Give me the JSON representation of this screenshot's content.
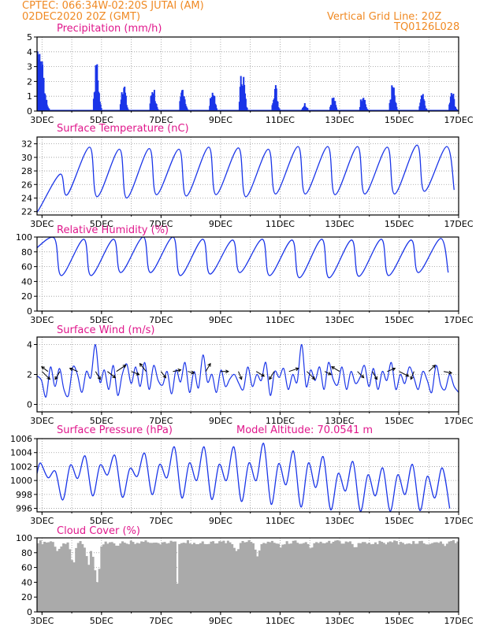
{
  "header": {
    "line1": "CPTEC:    066:34W-02:20S   JUTAI (AM)",
    "line2": "02DEC2020  20Z (GMT)",
    "right1": "Vertical Grid Line: 20Z",
    "right2": "TQ0126L028"
  },
  "date_ticks": [
    "3DEC",
    "5DEC",
    "7DEC",
    "9DEC",
    "11DEC",
    "13DEC",
    "15DEC",
    "17DEC"
  ],
  "colors": {
    "header": "#f08a24",
    "title": "#e0188c",
    "series": "#1a35e8",
    "cloud": "#aaaaaa",
    "frame": "#000000",
    "grid": "#999999"
  },
  "chart_data": [
    {
      "id": "precip",
      "type": "bar",
      "title": "Precipitation (mm/h)",
      "ylim": [
        0,
        5
      ],
      "yticks": [
        0,
        1,
        2,
        3,
        4,
        5
      ],
      "xlim_days": [
        2.833,
        17.0
      ],
      "bursts": [
        {
          "day": 2.95,
          "peak": 4.8
        },
        {
          "day": 4.85,
          "peak": 3.5
        },
        {
          "day": 5.75,
          "peak": 2.4
        },
        {
          "day": 6.75,
          "peak": 2.0
        },
        {
          "day": 7.75,
          "peak": 1.9
        },
        {
          "day": 8.75,
          "peak": 1.6
        },
        {
          "day": 9.75,
          "peak": 3.3
        },
        {
          "day": 10.85,
          "peak": 2.0
        },
        {
          "day": 11.85,
          "peak": 0.6
        },
        {
          "day": 12.8,
          "peak": 1.1
        },
        {
          "day": 13.8,
          "peak": 1.5
        },
        {
          "day": 14.8,
          "peak": 2.0
        },
        {
          "day": 15.8,
          "peak": 1.2
        },
        {
          "day": 16.8,
          "peak": 1.5
        }
      ]
    },
    {
      "id": "temp",
      "type": "line",
      "title": "Surface Temperature (nC)",
      "ylim": [
        21.5,
        33
      ],
      "yticks": [
        22,
        24,
        26,
        28,
        30,
        32
      ],
      "xlim_days": [
        2.833,
        17.0
      ],
      "start": 23.2,
      "min_values": [
        22.0,
        24.5,
        24.2,
        24.0,
        24.5,
        24.3,
        24.5,
        24.2,
        24.6,
        24.6,
        24.5,
        24.6,
        24.6,
        25.0,
        25.2
      ],
      "max_values": [
        27.5,
        31.5,
        31.2,
        31.3,
        31.2,
        31.5,
        31.4,
        31.2,
        31.6,
        31.6,
        31.6,
        31.5,
        31.8,
        31.6,
        31.0
      ]
    },
    {
      "id": "rh",
      "type": "line",
      "title": "Relative Humidity (%)",
      "ylim": [
        0,
        100
      ],
      "yticks": [
        0,
        20,
        40,
        60,
        80,
        100
      ],
      "xlim_days": [
        2.833,
        17.0
      ],
      "start": 99,
      "min_values": [
        80,
        48,
        48,
        52,
        52,
        48,
        50,
        52,
        48,
        45,
        45,
        47,
        48,
        52,
        52,
        48
      ],
      "max_values": [
        99,
        97,
        97,
        100,
        100,
        97,
        96,
        97,
        96,
        97,
        96,
        97,
        96,
        98,
        99,
        70
      ]
    },
    {
      "id": "wind",
      "type": "line",
      "title": "Surface Wind (m/s)",
      "ylim": [
        -0.5,
        4.5
      ],
      "yticks": [
        0,
        2,
        4
      ],
      "xlim_days": [
        2.833,
        17.0
      ],
      "values": [
        1.9,
        1.6,
        0.5,
        2.5,
        1.2,
        2.4,
        1.0,
        0.6,
        2.5,
        2.0,
        0.8,
        2.2,
        1.8,
        4.0,
        1.5,
        2.3,
        1.0,
        2.6,
        0.6,
        2.0,
        2.7,
        1.4,
        2.5,
        1.2,
        2.8,
        1.0,
        2.6,
        1.6,
        1.3,
        2.2,
        0.7,
        2.3,
        1.5,
        2.8,
        0.8,
        2.2,
        1.1,
        3.3,
        1.5,
        2.0,
        0.8,
        2.3,
        1.2,
        1.7,
        2.0,
        1.4,
        1.0,
        2.5,
        1.2,
        2.0,
        1.6,
        2.8,
        0.6,
        2.2,
        1.8,
        2.4,
        1.0,
        2.0,
        1.5,
        4.0,
        1.2,
        2.3,
        1.6,
        2.5,
        1.0,
        2.8,
        1.7,
        1.3,
        2.5,
        1.0,
        2.2,
        1.4,
        1.8,
        2.6,
        1.2,
        2.4,
        1.0,
        2.2,
        1.6,
        2.8,
        1.0,
        2.0,
        1.4,
        2.5,
        1.8,
        1.0,
        2.2,
        1.6,
        0.8,
        2.6,
        1.3,
        1.0,
        2.0,
        1.2,
        0.8
      ],
      "arrows": [
        {
          "day": 3.0,
          "dx": 10,
          "dy": 10
        },
        {
          "day": 3.2,
          "dx": -8,
          "dy": -6
        },
        {
          "day": 3.6,
          "dx": -6,
          "dy": 10
        },
        {
          "day": 4.2,
          "dx": -10,
          "dy": -4
        },
        {
          "day": 4.8,
          "dx": 6,
          "dy": 10
        },
        {
          "day": 5.2,
          "dx": 10,
          "dy": 8
        },
        {
          "day": 5.5,
          "dx": 12,
          "dy": -8
        },
        {
          "day": 6.0,
          "dx": 10,
          "dy": 4
        },
        {
          "day": 6.5,
          "dx": -8,
          "dy": -10
        },
        {
          "day": 7.0,
          "dx": 6,
          "dy": 8
        },
        {
          "day": 7.4,
          "dx": 10,
          "dy": -2
        },
        {
          "day": 7.9,
          "dx": 8,
          "dy": 2
        },
        {
          "day": 8.5,
          "dx": 6,
          "dy": -10
        },
        {
          "day": 9.0,
          "dx": 10,
          "dy": 0
        },
        {
          "day": 9.6,
          "dx": 4,
          "dy": 10
        },
        {
          "day": 10.2,
          "dx": 10,
          "dy": 6
        },
        {
          "day": 10.8,
          "dx": -6,
          "dy": 10
        },
        {
          "day": 11.3,
          "dx": 12,
          "dy": -4
        },
        {
          "day": 11.9,
          "dx": 10,
          "dy": 10
        },
        {
          "day": 12.5,
          "dx": 8,
          "dy": 4
        },
        {
          "day": 13.0,
          "dx": -10,
          "dy": -6
        },
        {
          "day": 13.6,
          "dx": 8,
          "dy": 8
        },
        {
          "day": 14.1,
          "dx": 6,
          "dy": 10
        },
        {
          "day": 14.6,
          "dx": 10,
          "dy": -4
        },
        {
          "day": 15.0,
          "dx": 12,
          "dy": 6
        },
        {
          "day": 15.5,
          "dx": -4,
          "dy": 10
        },
        {
          "day": 16.0,
          "dx": 8,
          "dy": -8
        },
        {
          "day": 16.5,
          "dx": 10,
          "dy": 2
        }
      ]
    },
    {
      "id": "pres",
      "type": "line",
      "title": "Surface Pressure (hPa)",
      "annotation": "Model Altitude: 70.0541  m",
      "ylim": [
        995.5,
        1006
      ],
      "yticks": [
        996,
        998,
        1000,
        1002,
        1004,
        1006
      ],
      "xlim_days": [
        2.833,
        17.0
      ],
      "start": 1001.0,
      "half_daily_max": [
        1002.5,
        1001.3,
        1002.2,
        1003.5,
        1002.2,
        1003.6,
        1001.7,
        1003.9,
        1002.3,
        1004.8,
        1002.5,
        1004.8,
        1002.3,
        1004.8,
        1002.5,
        1005.3,
        1002.4,
        1004.2,
        1002.5,
        1003.4,
        1001.0,
        1002.7,
        1000.8,
        1001.8,
        1000.8,
        1002.3,
        1000.6,
        1001.8
      ],
      "half_daily_min": [
        1000.4,
        997.2,
        1000.3,
        997.8,
        1000.8,
        997.6,
        1000.6,
        998.0,
        1000.4,
        997.5,
        1000.0,
        997.3,
        1000.0,
        997.0,
        1000.0,
        996.6,
        999.4,
        996.2,
        999.0,
        995.8,
        998.5,
        995.6,
        997.8,
        995.6,
        998.0,
        995.7,
        997.5,
        996.0
      ]
    },
    {
      "id": "cloud",
      "type": "area",
      "title": "Cloud Cover (%)",
      "ylim": [
        0,
        100
      ],
      "yticks": [
        0,
        20,
        40,
        60,
        80,
        100
      ],
      "xlim_days": [
        2.833,
        17.0
      ],
      "baseline": 97,
      "dips": [
        {
          "day": 3.5,
          "min": 75
        },
        {
          "day": 4.0,
          "min": 60
        },
        {
          "day": 4.5,
          "min": 60
        },
        {
          "day": 4.8,
          "min": 30
        },
        {
          "day": 5.5,
          "min": 85
        },
        {
          "day": 7.5,
          "min": 0
        },
        {
          "day": 8.5,
          "min": 88
        },
        {
          "day": 9.5,
          "min": 80
        },
        {
          "day": 10.2,
          "min": 75
        },
        {
          "day": 11.0,
          "min": 85
        },
        {
          "day": 12.0,
          "min": 85
        },
        {
          "day": 13.5,
          "min": 85
        },
        {
          "day": 15.2,
          "min": 90
        },
        {
          "day": 16.5,
          "min": 88
        }
      ]
    }
  ]
}
